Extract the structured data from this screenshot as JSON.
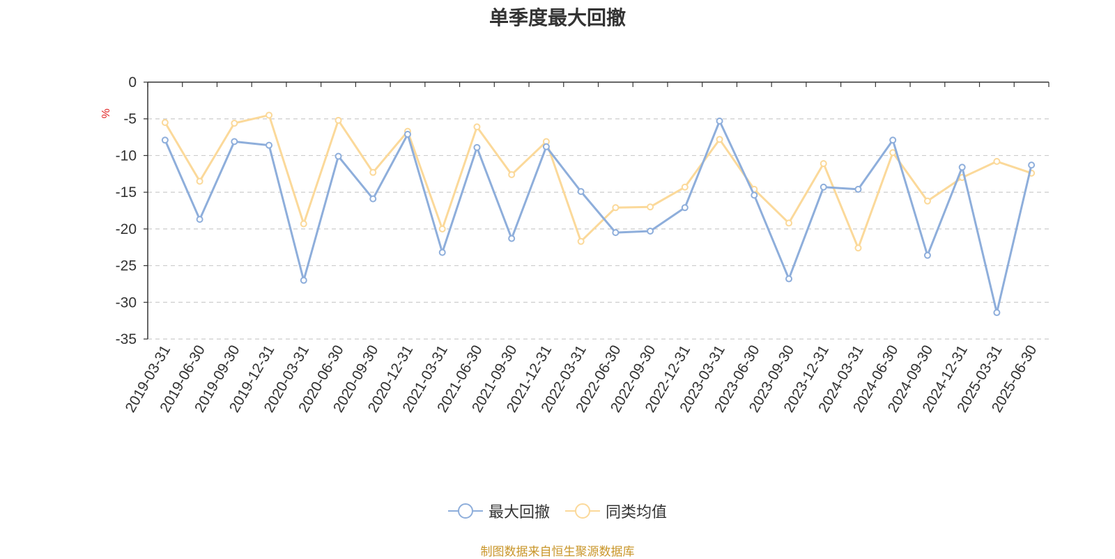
{
  "title": "单季度最大回撤",
  "source": "制图数据来自恒生聚源数据库",
  "chart_data": {
    "type": "line",
    "title": "单季度最大回撤",
    "ylabel": "%",
    "xlabel": "",
    "ylim": [
      -35,
      0
    ],
    "yticks": [
      0,
      -5,
      -10,
      -15,
      -20,
      -25,
      -30,
      -35
    ],
    "grid": true,
    "legend_position": "bottom",
    "categories": [
      "2019-03-31",
      "2019-06-30",
      "2019-09-30",
      "2019-12-31",
      "2020-03-31",
      "2020-06-30",
      "2020-09-30",
      "2020-12-31",
      "2021-03-31",
      "2021-06-30",
      "2021-09-30",
      "2021-12-31",
      "2022-03-31",
      "2022-06-30",
      "2022-09-30",
      "2022-12-31",
      "2023-03-31",
      "2023-06-30",
      "2023-09-30",
      "2023-12-31",
      "2024-03-31",
      "2024-06-30",
      "2024-09-30",
      "2024-12-31",
      "2025-03-31",
      "2025-06-30"
    ],
    "series": [
      {
        "name": "最大回撤",
        "color": "#8eaedb",
        "values": [
          -7.9,
          -18.7,
          -8.1,
          -8.6,
          -27.0,
          -10.1,
          -15.9,
          -7.1,
          -23.2,
          -8.9,
          -21.3,
          -8.8,
          -14.9,
          -20.5,
          -20.3,
          -17.1,
          -5.3,
          -15.4,
          -26.8,
          -14.3,
          -14.6,
          -7.9,
          -23.6,
          -11.6,
          -31.4,
          -11.3
        ]
      },
      {
        "name": "同类均值",
        "color": "#fbd99a",
        "values": [
          -5.5,
          -13.5,
          -5.6,
          -4.5,
          -19.3,
          -5.2,
          -12.3,
          -6.7,
          -20.0,
          -6.1,
          -12.6,
          -8.1,
          -21.7,
          -17.1,
          -17.0,
          -14.3,
          -7.8,
          -14.6,
          -19.2,
          -11.1,
          -22.6,
          -9.6,
          -16.2,
          -13.0,
          -10.8,
          -12.4
        ]
      }
    ]
  }
}
